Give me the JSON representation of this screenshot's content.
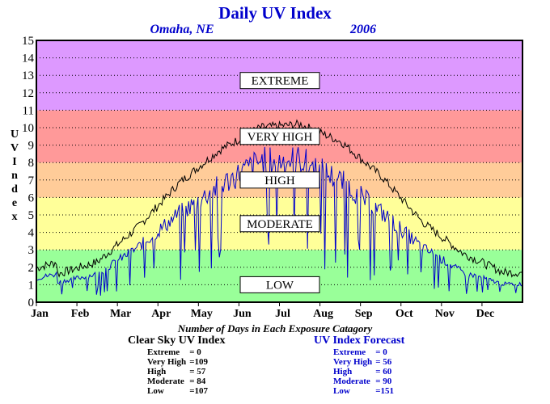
{
  "chart_data": {
    "type": "line",
    "title": "Daily UV Index",
    "subtitle_location": "Omaha, NE",
    "subtitle_year": "2006",
    "ylabel": "UV Index",
    "ylim": [
      0,
      15
    ],
    "yticks": [
      "0",
      "1",
      "2",
      "3",
      "4",
      "5",
      "6",
      "7",
      "8",
      "9",
      "10",
      "11",
      "12",
      "13",
      "14",
      "15"
    ],
    "x_months": [
      "Jan",
      "Feb",
      "Mar",
      "Apr",
      "May",
      "Jun",
      "Jul",
      "Aug",
      "Sep",
      "Oct",
      "Nov",
      "Dec"
    ],
    "grid": true,
    "bands": [
      {
        "label": "LOW",
        "from": 0,
        "to": 3,
        "color": "#99ff99"
      },
      {
        "label": "MODERATE",
        "from": 3,
        "to": 6,
        "color": "#ffff99"
      },
      {
        "label": "HIGH",
        "from": 6,
        "to": 8,
        "color": "#ffcc99"
      },
      {
        "label": "VERY HIGH",
        "from": 8,
        "to": 11,
        "color": "#ff9999"
      },
      {
        "label": "EXTREME",
        "from": 11,
        "to": 15,
        "color": "#dd99ff"
      }
    ],
    "series": [
      {
        "name": "Clear Sky UV Index",
        "color": "#000000",
        "monthly_values": [
          1.6,
          2.3,
          4.3,
          6.8,
          8.7,
          10.0,
          10.2,
          9.2,
          7.2,
          4.6,
          2.8,
          1.7
        ]
      },
      {
        "name": "UV Index Forecast",
        "color": "#0000cc",
        "monthly_values": [
          1.2,
          1.7,
          3.3,
          5.3,
          7.0,
          8.5,
          8.6,
          7.3,
          5.4,
          3.3,
          1.8,
          1.1
        ]
      }
    ]
  },
  "footnote": "Number of Days in Each Exposure Catagory",
  "clear_sky": {
    "heading": "Clear Sky UV Index",
    "rows": [
      {
        "label": "Extreme",
        "value": "=    0"
      },
      {
        "label": "Very High",
        "value": "=109"
      },
      {
        "label": "High",
        "value": "=  57"
      },
      {
        "label": "Moderate",
        "value": "=  84"
      },
      {
        "label": "Low",
        "value": "=107"
      }
    ]
  },
  "forecast": {
    "heading": "UV Index Forecast",
    "rows": [
      {
        "label": "Extreme",
        "value": "=    0"
      },
      {
        "label": "Very High",
        "value": "=  56"
      },
      {
        "label": "High",
        "value": "=  60"
      },
      {
        "label": "Moderate",
        "value": "=  90"
      },
      {
        "label": "Low",
        "value": "=151"
      }
    ]
  }
}
